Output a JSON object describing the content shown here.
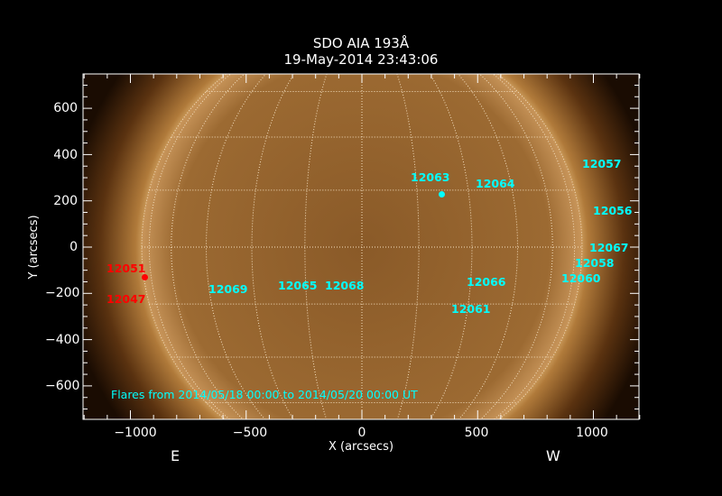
{
  "title": {
    "line1": "SDO AIA 193Å",
    "line2": "19-May-2014 23:43:06"
  },
  "axes": {
    "xlabel": "X (arcsecs)",
    "ylabel": "Y (arcsecs)",
    "xticks": [
      "−1000",
      "−500",
      "0",
      "500",
      "1000"
    ],
    "yticks": [
      "600",
      "400",
      "200",
      "0",
      "−200",
      "−400",
      "−600"
    ],
    "xlim": [
      -1200,
      1200
    ],
    "ylim": [
      -750,
      750
    ]
  },
  "limb_labels": {
    "east": "E",
    "west": "W"
  },
  "regions_cyan": [
    "12063",
    "12064",
    "12057",
    "12056",
    "12067",
    "12058",
    "12060",
    "12066",
    "12061",
    "12069",
    "12065",
    "12068"
  ],
  "regions_red": [
    "12051",
    "12047"
  ],
  "flare_note": "Flares from 2014/05/18 00:00 to 2014/05/20 00:00 UT",
  "colors": {
    "label_active": "#00ffff",
    "label_flare": "#ff0000",
    "sun": "#b07a3a"
  }
}
